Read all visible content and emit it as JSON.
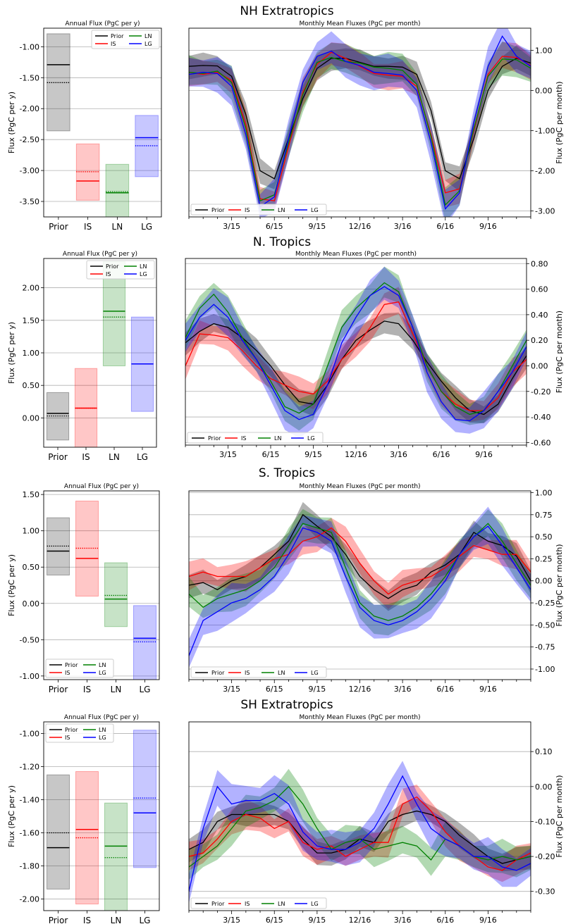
{
  "colors": {
    "Prior": "#000000",
    "IS": "#ff0000",
    "LN": "#008000",
    "LG": "#0000ff"
  },
  "legend_labels": [
    "Prior",
    "IS",
    "LN",
    "LG"
  ],
  "month_ticks": {
    "labeled": {
      "3": "3/15",
      "6": "6/15",
      "9": "9/15",
      "12": "12/16",
      "15": "3/16",
      "18": "6/16",
      "21": "9/16"
    },
    "minor_count": 25
  },
  "chart_data": [
    {
      "region": "NH Extratropics",
      "annual": {
        "type": "bar",
        "title": "Annual Flux (PgC per y)",
        "ylabel": "Flux (PgC per y)",
        "ylim": [
          -3.75,
          -0.7
        ],
        "yticks": [
          -1.0,
          -1.5,
          -2.0,
          -2.5,
          -3.0,
          -3.5
        ],
        "ytick_labels": [
          "-1.00",
          "-1.50",
          "-2.00",
          "-2.50",
          "-3.00",
          "-3.50"
        ],
        "legend_loc": "top-right",
        "categories": [
          "Prior",
          "IS",
          "LN",
          "LG"
        ],
        "mean": [
          -1.29,
          -3.17,
          -3.36,
          -2.47
        ],
        "dotted": [
          -1.58,
          -3.02,
          -3.34,
          -2.6
        ],
        "low": [
          -2.36,
          -3.48,
          -3.8,
          -3.1
        ],
        "high": [
          -0.79,
          -2.57,
          -2.9,
          -2.11
        ]
      },
      "monthly": {
        "type": "line",
        "title": "Monthly Mean Fluxes (PgC per month)",
        "ylabel": "Flux (PgC per month)",
        "ylim": [
          -3.15,
          1.55
        ],
        "yticks": [
          1.0,
          0.0,
          -1.0,
          -2.0,
          -3.0
        ],
        "ytick_labels": [
          "1.00",
          "0.00",
          "-1.00",
          "-2.00",
          "-3.00"
        ],
        "legend_loc": "bottom-left",
        "series": [
          {
            "name": "Prior",
            "values": [
              0.6,
              0.62,
              0.61,
              0.35,
              -0.6,
              -2.0,
              -2.2,
              -1.2,
              -0.2,
              0.55,
              0.8,
              0.8,
              0.7,
              0.6,
              0.6,
              0.58,
              0.4,
              -0.5,
              -2.0,
              -2.2,
              -1.2,
              0.0,
              0.6,
              0.8,
              0.68
            ]
          },
          {
            "name": "IS",
            "values": [
              0.45,
              0.4,
              0.45,
              0.25,
              -0.85,
              -2.7,
              -2.75,
              -1.4,
              -0.05,
              0.65,
              0.95,
              0.8,
              0.6,
              0.42,
              0.38,
              0.35,
              0.1,
              -1.1,
              -2.55,
              -2.45,
              -1.0,
              0.4,
              0.85,
              0.82,
              0.62
            ]
          },
          {
            "name": "LN",
            "values": [
              0.45,
              0.42,
              0.48,
              0.2,
              -0.95,
              -2.75,
              -2.6,
              -1.3,
              -0.1,
              0.7,
              0.82,
              0.72,
              0.68,
              0.58,
              0.55,
              0.5,
              0.15,
              -1.15,
              -2.85,
              -2.5,
              -0.95,
              0.35,
              0.78,
              0.76,
              0.55
            ]
          },
          {
            "name": "LG",
            "values": [
              0.4,
              0.45,
              0.42,
              0.1,
              -1.1,
              -2.9,
              -2.65,
              -1.2,
              0.2,
              0.85,
              0.98,
              0.72,
              0.62,
              0.45,
              0.42,
              0.38,
              0.0,
              -1.3,
              -2.95,
              -2.55,
              -0.8,
              0.6,
              1.35,
              0.85,
              0.6
            ]
          }
        ]
      }
    },
    {
      "region": "N. Tropics",
      "annual": {
        "type": "bar",
        "title": "Annual Flux (PgC per y)",
        "ylabel": "Flux (PgC per y)",
        "ylim": [
          -0.45,
          2.45
        ],
        "yticks": [
          2.0,
          1.5,
          1.0,
          0.5,
          0.0
        ],
        "ytick_labels": [
          "2.00",
          "1.50",
          "1.00",
          "0.50",
          "0.00"
        ],
        "legend_loc": "top-right",
        "categories": [
          "Prior",
          "IS",
          "LN",
          "LG"
        ],
        "mean": [
          0.07,
          0.15,
          1.64,
          0.83
        ],
        "dotted": [
          0.03,
          0.15,
          1.55,
          0.83
        ],
        "low": [
          -0.34,
          -0.45,
          0.8,
          0.1
        ],
        "high": [
          0.39,
          0.76,
          2.4,
          1.55
        ]
      },
      "monthly": {
        "type": "line",
        "title": "Monthly Mean Fluxes (PgC per month)",
        "ylabel": "Flux (PgC per month)",
        "ylim": [
          -0.62,
          0.84
        ],
        "yticks": [
          0.8,
          0.6,
          0.4,
          0.2,
          0.0,
          -0.2,
          -0.4,
          -0.6
        ],
        "ytick_labels": [
          "0.80",
          "0.60",
          "0.40",
          "0.20",
          "0.00",
          "-0.20",
          "-0.40",
          "-0.60"
        ],
        "legend_loc": "bottom-left",
        "series": [
          {
            "name": "Prior",
            "values": [
              0.18,
              0.27,
              0.33,
              0.3,
              0.22,
              0.12,
              0.0,
              -0.15,
              -0.28,
              -0.3,
              -0.15,
              0.05,
              0.2,
              0.28,
              0.35,
              0.33,
              0.2,
              0.03,
              -0.12,
              -0.25,
              -0.35,
              -0.38,
              -0.3,
              -0.1,
              0.08
            ]
          },
          {
            "name": "IS",
            "values": [
              0.0,
              0.25,
              0.24,
              0.22,
              0.12,
              0.0,
              -0.1,
              -0.15,
              -0.2,
              -0.22,
              -0.12,
              0.05,
              0.15,
              0.3,
              0.48,
              0.5,
              0.25,
              0.0,
              -0.2,
              -0.3,
              -0.35,
              -0.35,
              -0.25,
              -0.05,
              0.05
            ]
          },
          {
            "name": "LN",
            "values": [
              0.22,
              0.45,
              0.56,
              0.42,
              0.22,
              0.05,
              -0.12,
              -0.32,
              -0.37,
              -0.3,
              0.0,
              0.3,
              0.45,
              0.55,
              0.65,
              0.58,
              0.3,
              0.0,
              -0.2,
              -0.32,
              -0.38,
              -0.35,
              -0.2,
              0.0,
              0.2
            ]
          },
          {
            "name": "LG",
            "values": [
              0.2,
              0.38,
              0.48,
              0.38,
              0.2,
              0.05,
              -0.15,
              -0.35,
              -0.42,
              -0.38,
              -0.15,
              0.18,
              0.38,
              0.55,
              0.62,
              0.55,
              0.3,
              -0.05,
              -0.28,
              -0.42,
              -0.43,
              -0.35,
              -0.2,
              -0.05,
              0.15
            ]
          }
        ]
      }
    },
    {
      "region": "S. Tropics",
      "annual": {
        "type": "bar",
        "title": "Annual Flux (PgC per y)",
        "ylabel": "Flux (PgC per y)",
        "ylim": [
          -1.05,
          1.55
        ],
        "yticks": [
          1.5,
          1.0,
          0.5,
          0.0,
          -0.5,
          -1.0
        ],
        "ytick_labels": [
          "1.50",
          "1.00",
          "0.50",
          "0.00",
          "-0.50",
          "-1.00"
        ],
        "legend_loc": "bottom-left",
        "categories": [
          "Prior",
          "IS",
          "LN",
          "LG"
        ],
        "mean": [
          0.72,
          0.62,
          0.06,
          -0.48
        ],
        "dotted": [
          0.79,
          0.76,
          0.11,
          -0.53
        ],
        "low": [
          0.39,
          0.1,
          -0.32,
          -1.1
        ],
        "high": [
          1.18,
          1.41,
          0.56,
          -0.03
        ]
      },
      "monthly": {
        "type": "line",
        "title": "Monthly Mean Fluxes (PgC per month)",
        "ylabel": "Flux (PgC per month)",
        "ylim": [
          -1.12,
          1.02
        ],
        "yticks": [
          1.0,
          0.75,
          0.5,
          0.25,
          0.0,
          -0.25,
          -0.5,
          -0.75,
          -1.0
        ],
        "ytick_labels": [
          "1.00",
          "0.75",
          "0.50",
          "0.25",
          "0.00",
          "-0.25",
          "-0.50",
          "-0.75",
          "-1.00"
        ],
        "legend_loc": "bottom-left",
        "series": [
          {
            "name": "Prior",
            "values": [
              -0.05,
              -0.02,
              -0.1,
              0.0,
              0.05,
              0.15,
              0.3,
              0.45,
              0.75,
              0.62,
              0.5,
              0.3,
              0.05,
              -0.1,
              -0.2,
              -0.1,
              -0.05,
              0.1,
              0.18,
              0.3,
              0.55,
              0.45,
              0.4,
              0.28,
              0.0
            ]
          },
          {
            "name": "IS",
            "values": [
              0.05,
              0.1,
              0.05,
              0.05,
              0.05,
              0.15,
              0.25,
              0.3,
              0.45,
              0.5,
              0.6,
              0.45,
              0.2,
              0.0,
              -0.15,
              -0.05,
              0.0,
              0.05,
              0.15,
              0.28,
              0.4,
              0.35,
              0.3,
              0.3,
              0.1
            ]
          },
          {
            "name": "LN",
            "values": [
              -0.15,
              -0.3,
              -0.2,
              -0.15,
              -0.1,
              0.0,
              0.15,
              0.4,
              0.65,
              0.6,
              0.55,
              0.15,
              -0.25,
              -0.4,
              -0.45,
              -0.4,
              -0.3,
              -0.15,
              0.05,
              0.3,
              0.5,
              0.65,
              0.45,
              0.2,
              -0.05
            ]
          },
          {
            "name": "LG",
            "values": [
              -0.85,
              -0.45,
              -0.35,
              -0.25,
              -0.2,
              -0.1,
              0.05,
              0.3,
              0.6,
              0.55,
              0.45,
              0.05,
              -0.3,
              -0.45,
              -0.5,
              -0.45,
              -0.35,
              -0.2,
              0.0,
              0.3,
              0.5,
              0.62,
              0.4,
              0.15,
              -0.1
            ]
          }
        ]
      }
    },
    {
      "region": "SH Extratropics",
      "annual": {
        "type": "bar",
        "title": "Annual Flux (PgC per y)",
        "ylabel": "Flux (PgC per y)",
        "ylim": [
          -2.07,
          -0.93
        ],
        "yticks": [
          -1.0,
          -1.2,
          -1.4,
          -1.6,
          -1.8,
          -2.0
        ],
        "ytick_labels": [
          "-1.00",
          "-1.20",
          "-1.40",
          "-1.60",
          "-1.80",
          "-2.00"
        ],
        "legend_loc": "top-left",
        "categories": [
          "Prior",
          "IS",
          "LN",
          "LG"
        ],
        "mean": [
          -1.69,
          -1.58,
          -1.68,
          -1.48
        ],
        "dotted": [
          -1.6,
          -1.63,
          -1.75,
          -1.39
        ],
        "low": [
          -1.94,
          -2.03,
          -2.08,
          -1.81
        ],
        "high": [
          -1.25,
          -1.23,
          -1.42,
          -0.98
        ]
      },
      "monthly": {
        "type": "line",
        "title": "Monthly Mean Fluxes (PgC per month)",
        "ylabel": "Flux (PgC per month)",
        "ylim": [
          -0.355,
          0.185
        ],
        "yticks": [
          0.1,
          0.0,
          -0.1,
          -0.2,
          -0.3
        ],
        "ytick_labels": [
          "0.10",
          "0.00",
          "-0.10",
          "-0.20",
          "-0.30"
        ],
        "legend_loc": "bottom-left",
        "series": [
          {
            "name": "Prior",
            "values": [
              -0.18,
              -0.16,
              -0.1,
              -0.08,
              -0.08,
              -0.08,
              -0.08,
              -0.1,
              -0.15,
              -0.19,
              -0.19,
              -0.18,
              -0.15,
              -0.16,
              -0.1,
              -0.08,
              -0.07,
              -0.08,
              -0.1,
              -0.14,
              -0.17,
              -0.2,
              -0.22,
              -0.21,
              -0.2
            ]
          },
          {
            "name": "IS",
            "values": [
              -0.2,
              -0.19,
              -0.15,
              -0.1,
              -0.08,
              -0.09,
              -0.12,
              -0.1,
              -0.16,
              -0.18,
              -0.17,
              -0.2,
              -0.18,
              -0.16,
              -0.16,
              -0.05,
              -0.03,
              -0.07,
              -0.13,
              -0.17,
              -0.2,
              -0.23,
              -0.24,
              -0.21,
              -0.19
            ]
          },
          {
            "name": "LN",
            "values": [
              -0.23,
              -0.2,
              -0.17,
              -0.12,
              -0.07,
              -0.06,
              -0.04,
              0.0,
              -0.05,
              -0.12,
              -0.18,
              -0.16,
              -0.15,
              -0.18,
              -0.17,
              -0.16,
              -0.17,
              -0.21,
              -0.15,
              -0.17,
              -0.2,
              -0.21,
              -0.2,
              -0.21,
              -0.2
            ]
          },
          {
            "name": "LG",
            "values": [
              -0.3,
              -0.12,
              0.0,
              -0.05,
              -0.04,
              -0.04,
              -0.02,
              -0.05,
              -0.13,
              -0.17,
              -0.18,
              -0.18,
              -0.16,
              -0.12,
              -0.05,
              0.03,
              -0.05,
              -0.12,
              -0.15,
              -0.17,
              -0.2,
              -0.2,
              -0.23,
              -0.24,
              -0.22
            ]
          }
        ]
      }
    }
  ]
}
